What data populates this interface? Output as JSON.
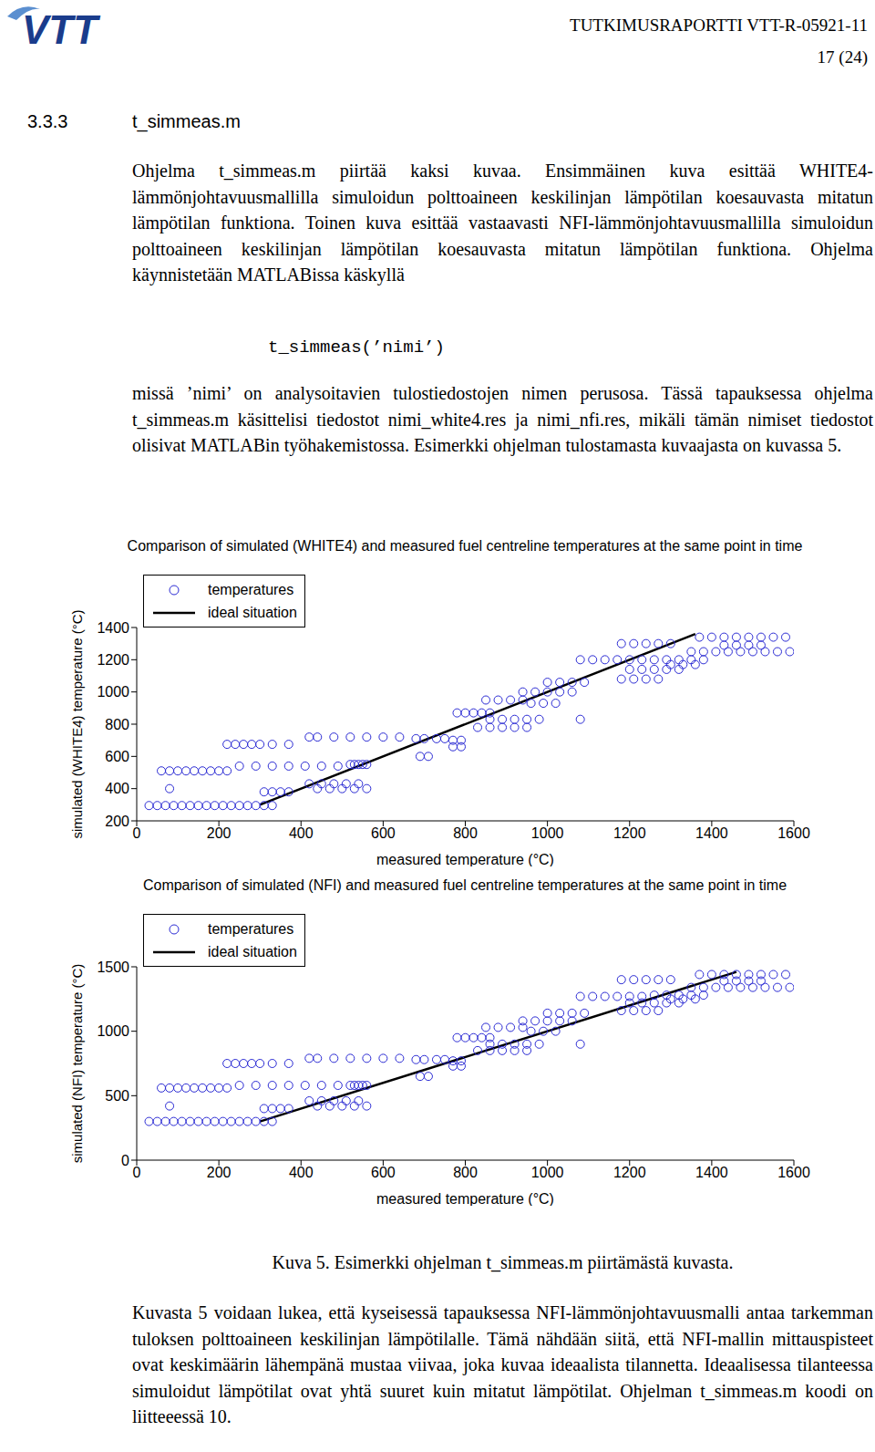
{
  "header": {
    "logo": "VTT",
    "report": "TUTKIMUSRAPORTTI VTT-R-05921-11",
    "page": "17 (24)"
  },
  "section": {
    "number": "3.3.3",
    "title": "t_simmeas.m"
  },
  "paragraphs": [
    "Ohjelma t_simmeas.m piirtää kaksi kuvaa. Ensimmäinen kuva esittää WHITE4-lämmönjohtavuusmallilla simuloidun polttoaineen keskilinjan lämpötilan koesauvasta mitatun lämpötilan funktiona. Toinen kuva esittää vastaavasti NFI-lämmönjohtavuusmallilla simuloidun polttoaineen keskilinjan lämpötilan koesauvasta mitatun lämpötilan funktiona. Ohjelma käynnistetään MATLABissa käskyllä",
    "missä ’nimi’ on analysoitavien tulostiedostojen nimen perusosa. Tässä tapauksessa ohjelma t_simmeas.m käsittelisi tiedostot nimi_white4.res ja nimi_nfi.res, mikäli tämän nimiset tiedostot olisivat MATLABin työhakemistossa. Esimerkki ohjelman tulostamasta kuvaajasta on kuvassa 5."
  ],
  "code": "t_simmeas(’nimi’)",
  "chart_data": [
    {
      "type": "scatter",
      "title": "Comparison of simulated (WHITE4) and measured fuel centreline temperatures at the same point in time",
      "x_label": "measured temperature (°C)",
      "y_label": "simulated (WHITE4) temperature (°C)",
      "xlim": [
        0,
        1600
      ],
      "xticks": [
        0,
        200,
        400,
        600,
        800,
        1000,
        1200,
        1400,
        1600
      ],
      "ylim": [
        200,
        1400
      ],
      "yticks": [
        200,
        400,
        600,
        800,
        1000,
        1200,
        1400
      ],
      "grid": false,
      "legend": "upper left",
      "series": [
        {
          "name": "temperatures",
          "type": "scatter",
          "marker": "circle",
          "color": "#2b2bd4",
          "x": [
            30,
            50,
            70,
            90,
            110,
            130,
            150,
            170,
            190,
            210,
            230,
            250,
            270,
            290,
            310,
            330,
            60,
            80,
            100,
            120,
            140,
            160,
            180,
            200,
            220,
            80,
            220,
            240,
            260,
            280,
            300,
            330,
            370,
            250,
            290,
            330,
            370,
            410,
            450,
            490,
            310,
            330,
            350,
            370,
            420,
            440,
            480,
            520,
            560,
            600,
            640,
            420,
            450,
            480,
            510,
            540,
            440,
            470,
            500,
            530,
            560,
            520,
            530,
            540,
            550,
            560,
            680,
            700,
            730,
            750,
            690,
            710,
            770,
            790,
            770,
            790,
            780,
            800,
            820,
            840,
            860,
            850,
            880,
            910,
            940,
            830,
            860,
            890,
            920,
            950,
            860,
            890,
            920,
            950,
            980,
            1080,
            940,
            970,
            1000,
            1030,
            1060,
            960,
            990,
            1020,
            1000,
            1030,
            1060,
            1090,
            1080,
            1110,
            1140,
            1170,
            1200,
            1230,
            1180,
            1210,
            1240,
            1270,
            1300,
            1200,
            1230,
            1260,
            1290,
            1320,
            1370,
            1400,
            1430,
            1460,
            1490,
            1520,
            1550,
            1580,
            1350,
            1380,
            1410,
            1440,
            1470,
            1500,
            1530,
            1560,
            1590,
            1260,
            1290,
            1320,
            1350,
            1380,
            1430,
            1460,
            1490,
            1520,
            1300,
            1330,
            1360,
            1180,
            1210,
            1240,
            1270
          ],
          "values": [
            295,
            295,
            295,
            295,
            295,
            295,
            295,
            295,
            295,
            295,
            295,
            295,
            295,
            295,
            295,
            295,
            510,
            510,
            510,
            510,
            510,
            510,
            510,
            510,
            510,
            400,
            675,
            675,
            675,
            675,
            675,
            675,
            675,
            540,
            540,
            540,
            540,
            540,
            540,
            540,
            380,
            380,
            380,
            380,
            720,
            720,
            720,
            720,
            720,
            720,
            720,
            430,
            430,
            430,
            430,
            430,
            400,
            400,
            400,
            400,
            400,
            550,
            550,
            550,
            550,
            550,
            710,
            710,
            710,
            710,
            600,
            600,
            660,
            660,
            700,
            700,
            870,
            870,
            870,
            870,
            870,
            950,
            950,
            950,
            950,
            780,
            780,
            780,
            780,
            780,
            830,
            830,
            830,
            830,
            830,
            830,
            1000,
            1000,
            1000,
            1000,
            1000,
            930,
            930,
            930,
            1060,
            1060,
            1060,
            1060,
            1200,
            1200,
            1200,
            1200,
            1200,
            1200,
            1300,
            1300,
            1300,
            1300,
            1300,
            1140,
            1140,
            1140,
            1140,
            1140,
            1340,
            1340,
            1340,
            1340,
            1340,
            1340,
            1340,
            1340,
            1250,
            1250,
            1250,
            1250,
            1250,
            1250,
            1250,
            1250,
            1250,
            1200,
            1200,
            1200,
            1200,
            1200,
            1290,
            1290,
            1290,
            1290,
            1170,
            1170,
            1170,
            1080,
            1080,
            1080,
            1080
          ]
        },
        {
          "name": "ideal situation",
          "type": "line",
          "line_style": "solid",
          "color": "#000000",
          "x": [
            300,
            1360
          ],
          "values": [
            300,
            1360
          ]
        }
      ]
    },
    {
      "type": "scatter",
      "title": "Comparison of simulated (NFI) and measured fuel centreline temperatures at the same point in time",
      "x_label": "measured temperature (°C)",
      "y_label": "simulated (NFI) temperature (°C)",
      "xlim": [
        0,
        1600
      ],
      "xticks": [
        0,
        200,
        400,
        600,
        800,
        1000,
        1200,
        1400,
        1600
      ],
      "ylim": [
        0,
        1500
      ],
      "yticks": [
        0,
        500,
        1000,
        1500
      ],
      "grid": false,
      "legend": "upper left",
      "series": [
        {
          "name": "temperatures",
          "type": "scatter",
          "marker": "circle",
          "color": "#2b2bd4",
          "x": [
            30,
            50,
            70,
            90,
            110,
            130,
            150,
            170,
            190,
            210,
            230,
            250,
            270,
            290,
            310,
            330,
            60,
            80,
            100,
            120,
            140,
            160,
            180,
            200,
            220,
            80,
            220,
            240,
            260,
            280,
            300,
            330,
            370,
            250,
            290,
            330,
            370,
            410,
            450,
            490,
            310,
            330,
            350,
            370,
            420,
            440,
            480,
            520,
            560,
            600,
            640,
            420,
            450,
            480,
            510,
            540,
            440,
            470,
            500,
            530,
            560,
            520,
            530,
            540,
            550,
            560,
            680,
            700,
            730,
            750,
            690,
            710,
            770,
            790,
            770,
            790,
            780,
            800,
            820,
            840,
            860,
            850,
            880,
            910,
            940,
            830,
            860,
            890,
            920,
            950,
            860,
            890,
            920,
            950,
            980,
            1080,
            940,
            970,
            1000,
            1030,
            1060,
            960,
            990,
            1020,
            1000,
            1030,
            1060,
            1090,
            1080,
            1110,
            1140,
            1170,
            1200,
            1230,
            1180,
            1210,
            1240,
            1270,
            1300,
            1200,
            1230,
            1260,
            1290,
            1320,
            1370,
            1400,
            1430,
            1460,
            1490,
            1520,
            1550,
            1580,
            1350,
            1380,
            1410,
            1440,
            1470,
            1500,
            1530,
            1560,
            1590,
            1260,
            1290,
            1320,
            1350,
            1380,
            1430,
            1460,
            1490,
            1520,
            1300,
            1330,
            1360,
            1180,
            1210,
            1240,
            1270
          ],
          "values": [
            300,
            300,
            300,
            300,
            300,
            300,
            300,
            300,
            300,
            300,
            300,
            300,
            300,
            300,
            300,
            300,
            560,
            560,
            560,
            560,
            560,
            560,
            560,
            560,
            560,
            420,
            750,
            750,
            750,
            750,
            750,
            750,
            750,
            580,
            580,
            580,
            580,
            580,
            580,
            580,
            400,
            400,
            400,
            400,
            790,
            790,
            790,
            790,
            790,
            790,
            790,
            460,
            460,
            460,
            460,
            460,
            420,
            420,
            420,
            420,
            420,
            580,
            580,
            580,
            580,
            580,
            780,
            780,
            780,
            780,
            650,
            650,
            730,
            730,
            770,
            770,
            950,
            950,
            950,
            950,
            950,
            1030,
            1030,
            1030,
            1030,
            850,
            850,
            850,
            850,
            850,
            900,
            900,
            900,
            900,
            900,
            900,
            1080,
            1080,
            1080,
            1080,
            1080,
            1000,
            1000,
            1000,
            1140,
            1140,
            1140,
            1140,
            1270,
            1270,
            1270,
            1270,
            1270,
            1270,
            1400,
            1400,
            1400,
            1400,
            1400,
            1220,
            1220,
            1220,
            1220,
            1220,
            1440,
            1440,
            1440,
            1440,
            1440,
            1440,
            1440,
            1440,
            1340,
            1340,
            1340,
            1340,
            1340,
            1340,
            1340,
            1340,
            1340,
            1280,
            1280,
            1280,
            1280,
            1280,
            1390,
            1390,
            1390,
            1390,
            1250,
            1250,
            1250,
            1160,
            1160,
            1160,
            1160
          ]
        },
        {
          "name": "ideal situation",
          "type": "line",
          "line_style": "solid",
          "color": "#000000",
          "x": [
            300,
            1460
          ],
          "values": [
            300,
            1460
          ]
        }
      ]
    }
  ],
  "caption": "Kuva 5. Esimerkki ohjelman t_simmeas.m piirtämästä kuvasta.",
  "closing": "Kuvasta 5 voidaan lukea, että kyseisessä tapauksessa NFI-lämmönjohtavuusmalli antaa tarkemman tuloksen polttoaineen keskilinjan lämpötilalle. Tämä nähdään siitä, että NFI-mallin mittauspisteet ovat keskimäärin lähempänä mustaa viivaa, joka kuvaa ideaalista tilannetta. Ideaalisessa tilanteessa simuloidut lämpötilat ovat yhtä suuret kuin mitatut lämpötilat. Ohjelman t_simmeas.m koodi on liitteeessä 10."
}
